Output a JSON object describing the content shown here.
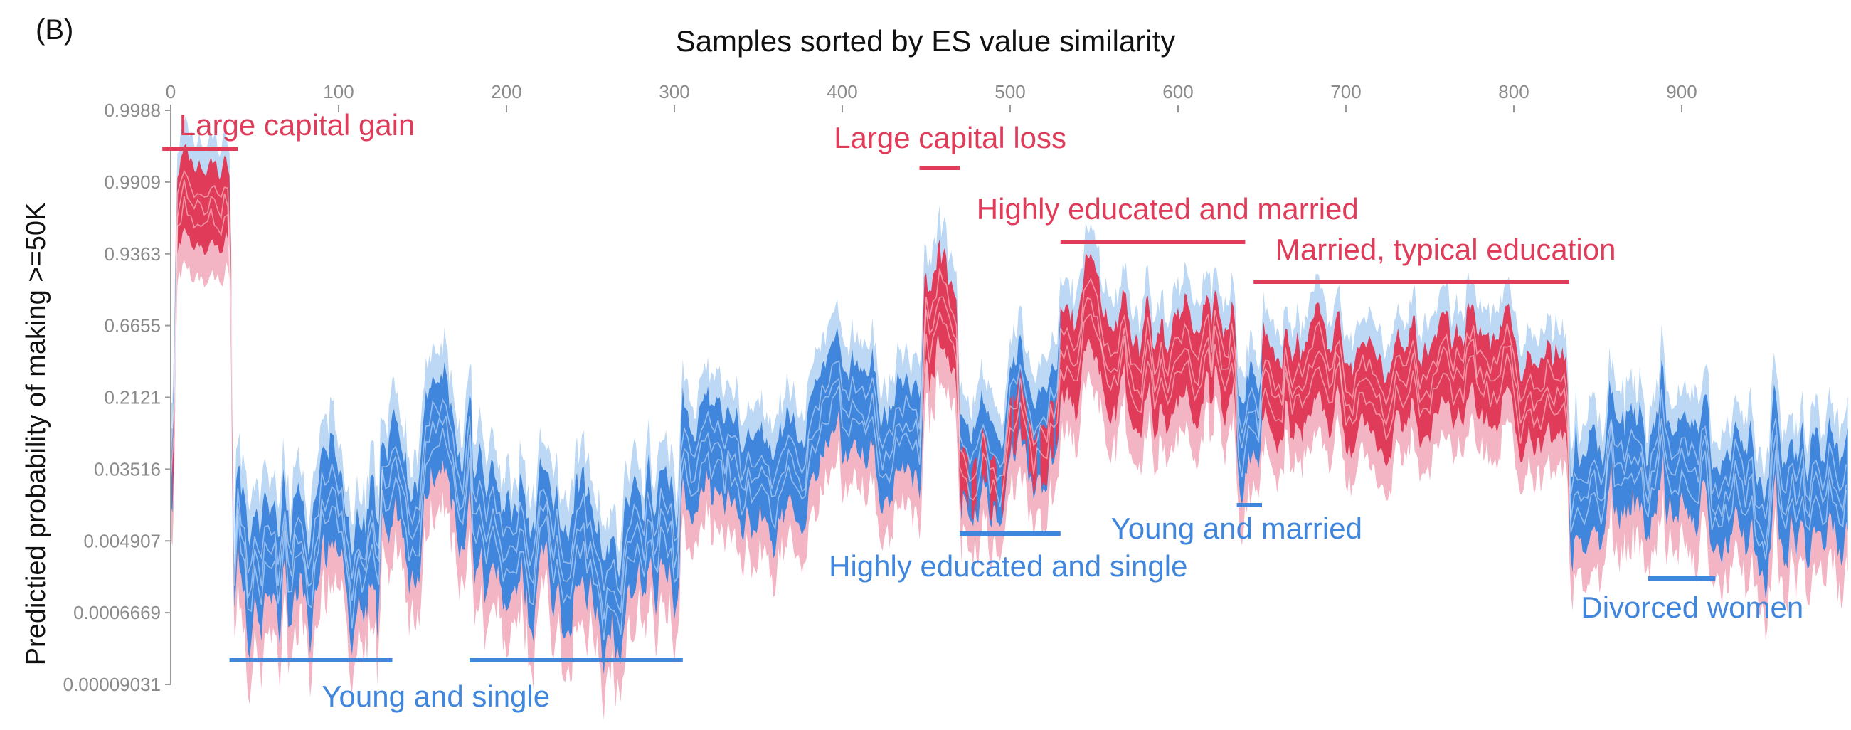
{
  "panel_label": "(B)",
  "colors": {
    "red": "#e03c5a",
    "pink": "#f3b4c4",
    "blue": "#3f86dc",
    "light_blue": "#bcd8f4",
    "axis": "#999999",
    "tick_text": "#8a8a8a"
  },
  "chart_data": {
    "type": "area",
    "title": "Samples sorted by ES value similarity",
    "xlabel": "Samples sorted by ES value similarity",
    "ylabel": "Predictied probability of making >=50K",
    "xlim": [
      0,
      1000
    ],
    "x_ticks": [
      "0",
      "100",
      "200",
      "300",
      "400",
      "500",
      "600",
      "700",
      "800",
      "900"
    ],
    "x_tick_values": [
      0,
      100,
      200,
      300,
      400,
      500,
      600,
      700,
      800,
      900
    ],
    "y_ticks": [
      "0.9988",
      "0.9909",
      "0.9363",
      "0.6655",
      "0.2121",
      "0.03516",
      "0.004907",
      "0.0006669",
      "0.00009031"
    ],
    "y_scale": "logit",
    "grid": false,
    "segments": [
      {
        "x": [
          0,
          3
        ],
        "level": 0.07,
        "amp": 0.5
      },
      {
        "x": [
          3,
          37
        ],
        "level": 0.984,
        "amp": 0.35,
        "dominant": "red"
      },
      {
        "x": [
          37,
          125
        ],
        "level": 0.003,
        "amp": 0.9,
        "dominant": "blue"
      },
      {
        "x": [
          125,
          180
        ],
        "level": 0.05,
        "amp": 0.8,
        "dominant": "blue"
      },
      {
        "x": [
          180,
          305
        ],
        "level": 0.004,
        "amp": 0.9,
        "dominant": "blue"
      },
      {
        "x": [
          305,
          380
        ],
        "level": 0.03,
        "amp": 0.6,
        "dominant": "blue"
      },
      {
        "x": [
          380,
          448
        ],
        "level": 0.12,
        "amp": 0.6,
        "dominant": "blue"
      },
      {
        "x": [
          448,
          470
        ],
        "level": 0.7,
        "amp": 0.7,
        "dominant": "red"
      },
      {
        "x": [
          470,
          530
        ],
        "level": 0.08,
        "amp": 0.7,
        "dominant": "mixed"
      },
      {
        "x": [
          530,
          635
        ],
        "level": 0.4,
        "amp": 0.6,
        "dominant": "red"
      },
      {
        "x": [
          635,
          650
        ],
        "level": 0.05,
        "amp": 0.6,
        "dominant": "blue"
      },
      {
        "x": [
          650,
          833
        ],
        "level": 0.28,
        "amp": 0.5,
        "dominant": "red"
      },
      {
        "x": [
          833,
          1000
        ],
        "level": 0.03,
        "amp": 0.8,
        "dominant": "blue"
      }
    ],
    "annotations": [
      {
        "text": "Large capital gain",
        "color": "red",
        "x_range": [
          -5,
          40
        ],
        "text_x": 5
      },
      {
        "text": "Large capital loss",
        "color": "red",
        "x_range": [
          446,
          470
        ],
        "text_x": 395
      },
      {
        "text": "Highly educated and married",
        "color": "red",
        "x_range": [
          530,
          640
        ],
        "text_x": 480
      },
      {
        "text": "Married, typical education",
        "color": "red",
        "x_range": [
          645,
          833
        ],
        "text_x": 658
      },
      {
        "text": "Young and single",
        "color": "blue",
        "x_range": [
          35,
          132
        ],
        "text_x": 90,
        "second_range": [
          178,
          305
        ]
      },
      {
        "text": "Highly educated and single",
        "color": "blue",
        "x_range": [
          470,
          530
        ],
        "text_x": 392
      },
      {
        "text": "Young and married",
        "color": "blue",
        "x_range": [
          635,
          650
        ],
        "text_x": 560
      },
      {
        "text": "Divorced women",
        "color": "blue",
        "x_range": [
          880,
          920
        ],
        "text_x": 840
      }
    ]
  }
}
